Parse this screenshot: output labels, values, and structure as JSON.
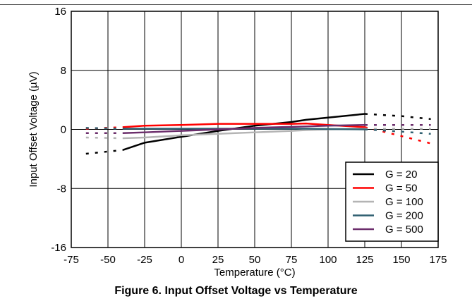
{
  "figure": {
    "caption": "Figure 6. Input Offset Voltage vs Temperature"
  },
  "chart_data": {
    "type": "line",
    "title": "",
    "xlabel": "Temperature (°C)",
    "ylabel": "Input Offset Voltage (µV)",
    "xlim": [
      -75,
      175
    ],
    "ylim": [
      -16,
      16
    ],
    "xticks": [
      -75,
      -50,
      -25,
      0,
      25,
      50,
      75,
      100,
      125,
      150,
      175
    ],
    "yticks": [
      -16,
      -8,
      0,
      8,
      16
    ],
    "grid": true,
    "legend_position": "bottom-right",
    "series": [
      {
        "name": "G = 20",
        "color": "#000000",
        "solid": {
          "x": [
            -40,
            -25,
            0,
            25,
            50,
            75,
            85,
            100,
            125
          ],
          "y": [
            -2.8,
            -1.8,
            -1.0,
            -0.2,
            0.5,
            1.0,
            1.3,
            1.6,
            2.1
          ]
        },
        "dotted_low": {
          "x": [
            -65,
            -40
          ],
          "y": [
            -3.3,
            -2.8
          ]
        },
        "dotted_high": {
          "x": [
            125,
            150,
            170
          ],
          "y": [
            2.1,
            1.8,
            1.4
          ]
        }
      },
      {
        "name": "G = 50",
        "color": "#ff0000",
        "solid": {
          "x": [
            -40,
            -25,
            0,
            25,
            50,
            75,
            85,
            100,
            125
          ],
          "y": [
            0.3,
            0.5,
            0.6,
            0.75,
            0.75,
            0.75,
            0.8,
            0.6,
            0.3
          ]
        },
        "dotted_low": {
          "x": [
            -65,
            -40
          ],
          "y": [
            0.1,
            0.3
          ]
        },
        "dotted_high": {
          "x": [
            125,
            150,
            170
          ],
          "y": [
            0.3,
            -0.9,
            -1.9
          ]
        }
      },
      {
        "name": "G = 100",
        "color": "#b4b4b4",
        "solid": {
          "x": [
            -40,
            -25,
            0,
            25,
            50,
            75,
            85,
            100,
            125
          ],
          "y": [
            -1.2,
            -1.1,
            -0.8,
            -0.6,
            -0.4,
            -0.2,
            -0.1,
            0.0,
            0.1
          ]
        },
        "dotted_low": {
          "x": [
            -65,
            -40
          ],
          "y": [
            -1.1,
            -1.2
          ]
        },
        "dotted_high": {
          "x": [
            125,
            150,
            170
          ],
          "y": [
            0.1,
            0.1,
            0.1
          ]
        }
      },
      {
        "name": "G = 200",
        "color": "#2f5f70",
        "solid": {
          "x": [
            -40,
            -25,
            0,
            25,
            50,
            75,
            85,
            100,
            125
          ],
          "y": [
            0.1,
            0.1,
            0.1,
            0.1,
            0.1,
            0.1,
            0.1,
            0.05,
            0.0
          ]
        },
        "dotted_low": {
          "x": [
            -65,
            -40
          ],
          "y": [
            0.2,
            0.1
          ]
        },
        "dotted_high": {
          "x": [
            125,
            150,
            170
          ],
          "y": [
            0.0,
            -0.3,
            -0.6
          ]
        }
      },
      {
        "name": "G = 500",
        "color": "#6b2d6b",
        "solid": {
          "x": [
            -40,
            -25,
            0,
            25,
            50,
            75,
            85,
            100,
            125
          ],
          "y": [
            -0.5,
            -0.4,
            -0.2,
            0.0,
            0.2,
            0.35,
            0.4,
            0.5,
            0.6
          ]
        },
        "dotted_low": {
          "x": [
            -65,
            -40
          ],
          "y": [
            -0.5,
            -0.5
          ]
        },
        "dotted_high": {
          "x": [
            125,
            150,
            170
          ],
          "y": [
            0.6,
            0.6,
            0.6
          ]
        }
      }
    ]
  }
}
